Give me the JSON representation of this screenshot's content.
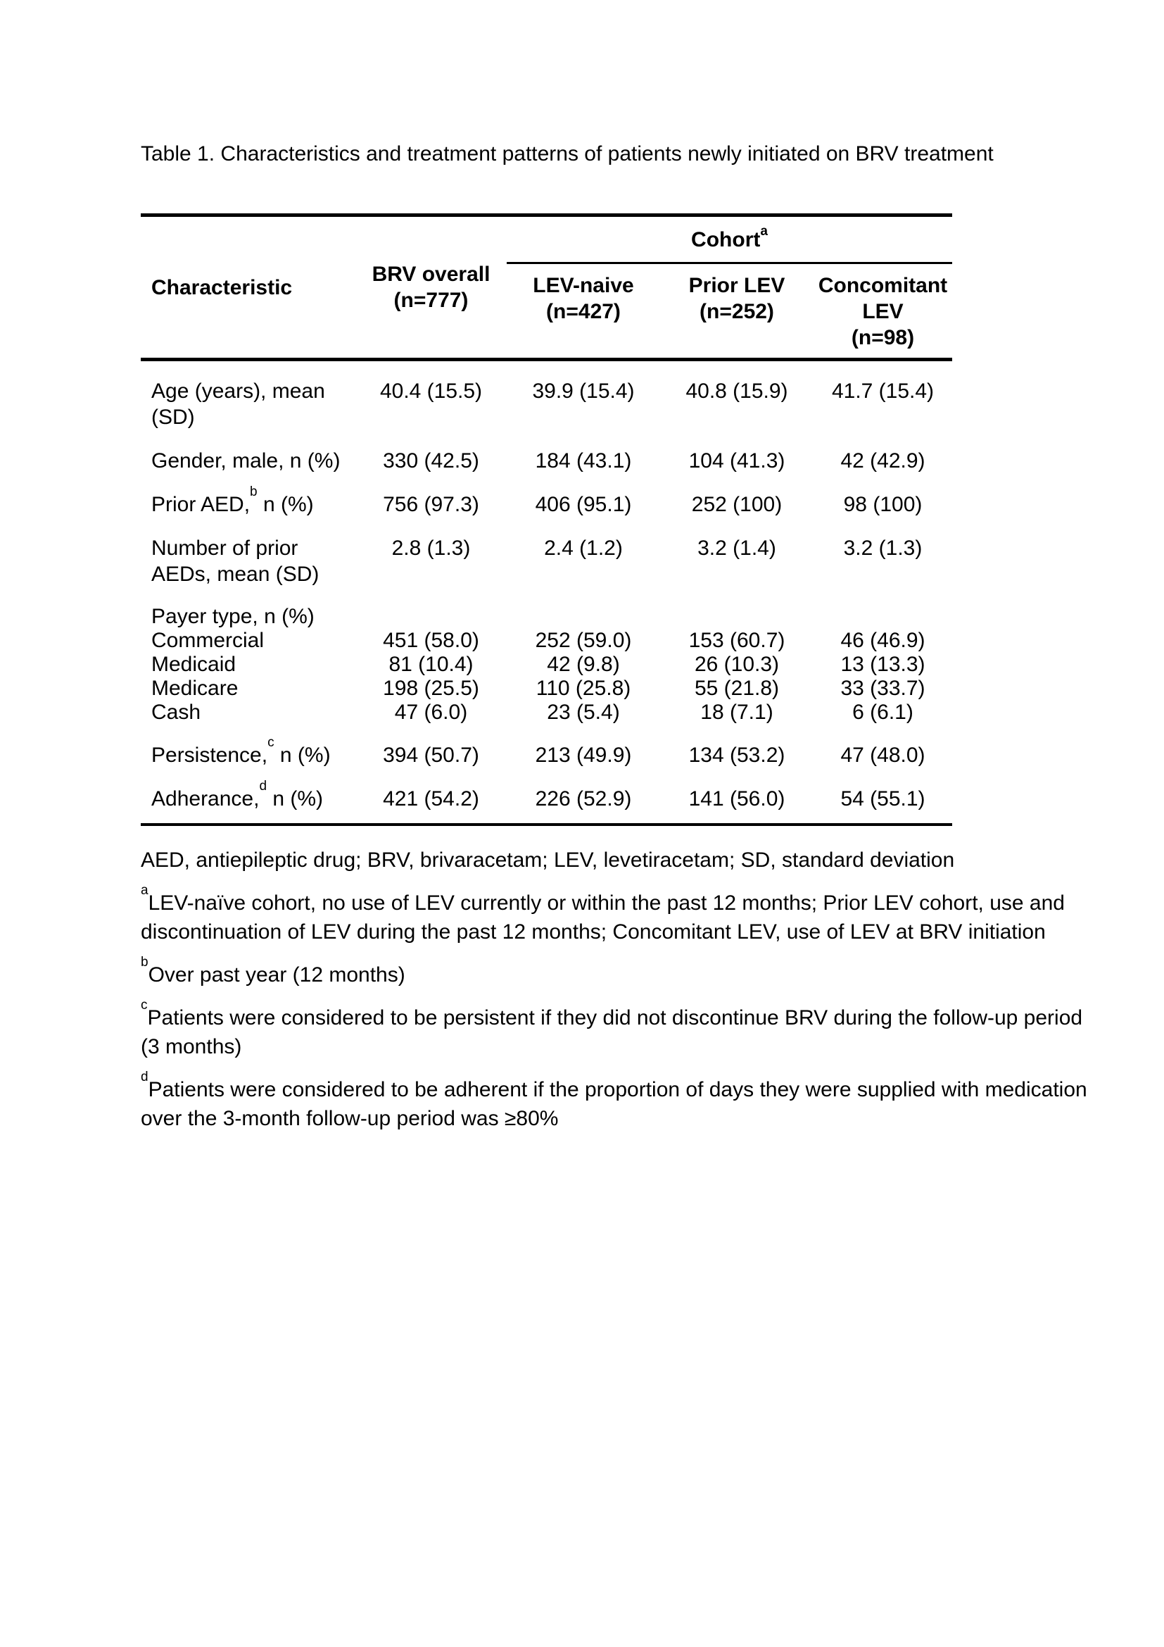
{
  "page": {
    "title": "Table 1. Characteristics and treatment patterns of patients newly initiated on BRV treatment"
  },
  "table": {
    "cohort": {
      "label": "Cohort",
      "sup": "a"
    },
    "columns": {
      "characteristic": "Characteristic",
      "brv_overall": {
        "line1": "BRV overall",
        "line2": "(n=777)"
      },
      "lev_naive": {
        "line1": "LEV-naive",
        "line2": "(n=427)"
      },
      "prior_lev": {
        "line1": "Prior LEV",
        "line2": "(n=252)"
      },
      "concomitant_lev": {
        "line1": "Concomitant",
        "line2": "LEV",
        "line3": "(n=98)"
      }
    },
    "rows": [
      {
        "label": "Age (years), mean",
        "label2": "(SD)",
        "values": [
          "40.4 (15.5)",
          "39.9 (15.4)",
          "40.8 (15.9)",
          "41.7 (15.4)"
        ]
      },
      {
        "label": "Gender, male, n (%)",
        "values": [
          "330 (42.5)",
          "184 (43.1)",
          "104 (41.3)",
          "42 (42.9)"
        ]
      },
      {
        "label_pre": "Prior AED,",
        "label_sup": "b",
        "label_post": " n (%)",
        "values": [
          "756 (97.3)",
          "406 (95.1)",
          "252 (100)",
          "98 (100)"
        ]
      },
      {
        "label": "Number of prior",
        "label2": "AEDs, mean (SD)",
        "values": [
          "2.8 (1.3)",
          "2.4 (1.2)",
          "3.2 (1.4)",
          "3.2 (1.3)"
        ]
      },
      {
        "label_pre": "Persistence,",
        "label_sup": "c",
        "label_post": " n (%)",
        "values": [
          "394 (50.7)",
          "213 (49.9)",
          "134 (53.2)",
          "47 (48.0)"
        ]
      },
      {
        "label_pre": "Adherance,",
        "label_sup": "d",
        "label_post": " n (%)",
        "values": [
          "421 (54.2)",
          "226 (52.9)",
          "141 (56.0)",
          "54 (55.1)"
        ]
      }
    ],
    "payer": {
      "header": "Payer type, n (%)",
      "items": [
        {
          "label": "Commercial",
          "values": [
            "451 (58.0)",
            "252 (59.0)",
            "153 (60.7)",
            "46 (46.9)"
          ]
        },
        {
          "label": "Medicaid",
          "values": [
            "81 (10.4)",
            "42 (9.8)",
            "26 (10.3)",
            "13 (13.3)"
          ]
        },
        {
          "label": "Medicare",
          "values": [
            "198 (25.5)",
            "110 (25.8)",
            "55 (21.8)",
            "33 (33.7)"
          ]
        },
        {
          "label": "Cash",
          "values": [
            "47 (6.0)",
            "23 (5.4)",
            "18 (7.1)",
            "6 (6.1)"
          ]
        }
      ]
    }
  },
  "notes": {
    "abbreviations": "AED, antiepileptic drug; BRV, brivaracetam; LEV, levetiracetam; SD, standard deviation",
    "footnotes": [
      {
        "marker": "a",
        "lines": [
          "LEV-naïve cohort, no use of LEV currently or within the past 12 months; Prior LEV cohort, use and",
          "discontinuation of LEV during the past 12 months; Concomitant LEV, use of LEV at BRV initiation"
        ]
      },
      {
        "marker": "b",
        "lines": [
          "Over past year (12 months)"
        ]
      },
      {
        "marker": "c",
        "lines": [
          "Patients were considered to be persistent if they did not discontinue BRV during the follow-up period",
          "(3 months)"
        ]
      },
      {
        "marker": "d",
        "lines": [
          "Patients were considered to be adherent if the proportion of days they were supplied with medication",
          "over the 3-month follow-up period was ≥80%"
        ]
      }
    ]
  },
  "colors": {
    "text": "#000000",
    "background": "#ffffff",
    "rule": "#000000"
  }
}
